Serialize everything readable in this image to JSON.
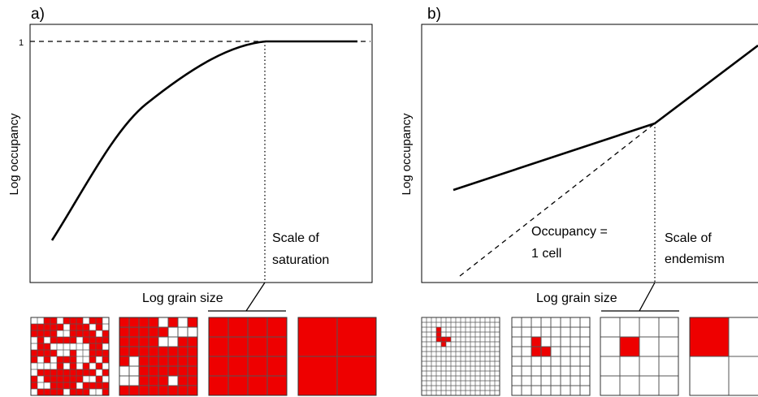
{
  "panel_a": {
    "letter": "a)",
    "y_label": "Log occupancy",
    "x_label": "Log grain size",
    "tick_label": "1",
    "annotation_line1": "Scale of",
    "annotation_line2": "saturation",
    "grids": [
      {
        "n": 12,
        "pattern": "dense"
      },
      {
        "n": 8,
        "pattern": "medium"
      },
      {
        "n": 4,
        "pattern": "full"
      },
      {
        "n": 2,
        "pattern": "full"
      }
    ]
  },
  "panel_b": {
    "letter": "b)",
    "y_label": "Log occupancy",
    "x_label": "Log grain size",
    "dashed_label_line1": "Occupancy =",
    "dashed_label_line2": "1 cell",
    "annotation_line1": "Scale of",
    "annotation_line2": "endemism",
    "grids": [
      {
        "n": 16,
        "pattern": "tiny"
      },
      {
        "n": 8,
        "pattern": "small"
      },
      {
        "n": 4,
        "pattern": "one"
      },
      {
        "n": 2,
        "pattern": "one"
      }
    ]
  },
  "colors": {
    "fill": "#ee0000",
    "line": "#000000",
    "grid_line": "#555555"
  }
}
